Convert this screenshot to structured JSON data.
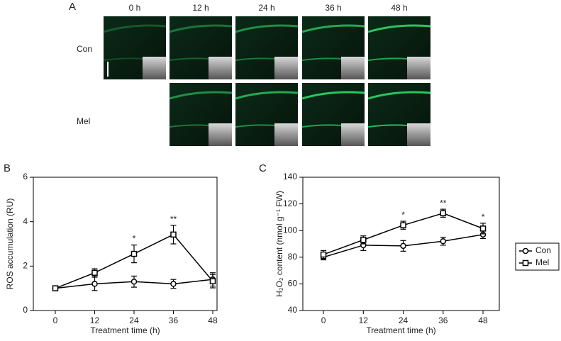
{
  "panel_a": {
    "label": "A",
    "columns": [
      "0 h",
      "12 h",
      "24 h",
      "36 h",
      "48 h"
    ],
    "rows": [
      "Con",
      "Mel"
    ]
  },
  "chart_data": [
    {
      "type": "line",
      "panel_label": "B",
      "x_label": "Treatment time (h)",
      "y_label": "ROS accumulation (RU)",
      "x": [
        0,
        12,
        24,
        36,
        48
      ],
      "xlim": [
        -6.7,
        49.3
      ],
      "xticks": [
        0,
        12,
        24,
        36,
        48
      ],
      "ylim": [
        0,
        6
      ],
      "yticks": [
        0,
        2,
        4,
        6
      ],
      "series": [
        {
          "name": "Con",
          "color": "#000000",
          "marker": "circle",
          "values": [
            1.0,
            1.2,
            1.3,
            1.2,
            1.4
          ],
          "errors": [
            0.1,
            0.3,
            0.25,
            0.2,
            0.3
          ]
        },
        {
          "name": "Mel",
          "color": "#000000",
          "marker": "square",
          "values": [
            1.0,
            1.7,
            2.55,
            3.42,
            1.32
          ],
          "errors": [
            0.1,
            0.18,
            0.4,
            0.42,
            0.3
          ]
        }
      ],
      "annotations": [
        {
          "text": "*",
          "x": 24
        },
        {
          "text": "**",
          "x": 36
        }
      ]
    },
    {
      "type": "line",
      "panel_label": "C",
      "x_label": "Treatment time (h)",
      "y_label": "H₂O₂ content (nmol g⁻¹ FW)",
      "x": [
        0,
        12,
        24,
        36,
        48
      ],
      "xlim": [
        -6.2,
        52.9
      ],
      "xticks": [
        0,
        12,
        24,
        36,
        48
      ],
      "ylim": [
        40,
        140
      ],
      "yticks": [
        40,
        60,
        80,
        100,
        120,
        140
      ],
      "legend": "outside right",
      "series": [
        {
          "name": "Con",
          "color": "#000000",
          "marker": "circle",
          "values": [
            80,
            89,
            88.5,
            92,
            97
          ],
          "errors": [
            2,
            4,
            4,
            3,
            3
          ]
        },
        {
          "name": "Mel",
          "color": "#000000",
          "marker": "square",
          "values": [
            82,
            93,
            104,
            113,
            101.5
          ],
          "errors": [
            3,
            3,
            3,
            3,
            4
          ]
        }
      ],
      "annotations": [
        {
          "text": "*",
          "x": 24
        },
        {
          "text": "**",
          "x": 36
        },
        {
          "text": "*",
          "x": 48
        }
      ]
    }
  ]
}
